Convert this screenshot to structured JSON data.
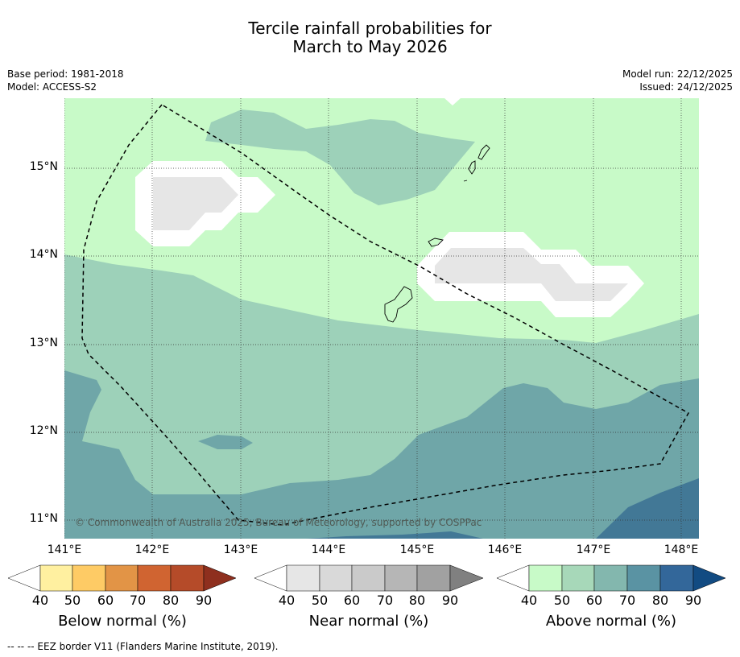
{
  "title": {
    "line1": "Tercile rainfall probabilities for",
    "line2": "March to May 2026"
  },
  "meta": {
    "base_period": "Base period: 1981-2018",
    "model": "Model: ACCESS-S2",
    "model_run": "Model run: 22/12/2025",
    "issued": "Issued: 24/12/2025"
  },
  "map": {
    "lat_labels": [
      "15°N",
      "14°N",
      "13°N",
      "12°N",
      "11°N"
    ],
    "lon_labels": [
      "141°E",
      "142°E",
      "143°E",
      "144°E",
      "145°E",
      "146°E",
      "147°E",
      "148°E"
    ],
    "copyright": "© Commonwealth of Australia 2025, Bureau of Meteorology, supported by COSPPac",
    "colors": {
      "above_40_50": "#c8fac8",
      "above_50_60": "#9dd1b9",
      "above_60_70": "#6fa6a8",
      "above_70_80": "#427896",
      "near_40_50": "#e6e6e6"
    }
  },
  "colorbars": {
    "ticks": [
      "40",
      "50",
      "60",
      "70",
      "80",
      "90"
    ],
    "below": {
      "label": "Below normal (%)",
      "colors": [
        "#fff0a0",
        "#fecb65",
        "#e29446",
        "#d06431",
        "#b54b29",
        "#8e2f1e"
      ]
    },
    "near": {
      "label": "Near normal (%)",
      "colors": [
        "#e6e6e6",
        "#d9d9d9",
        "#cacaca",
        "#b6b6b6",
        "#a1a1a1",
        "#808080"
      ]
    },
    "above": {
      "label": "Above normal (%)",
      "colors": [
        "#c8fac8",
        "#a7d8b9",
        "#83b7ae",
        "#5a93a3",
        "#33679a",
        "#124b82"
      ]
    }
  },
  "footer": "--  --  -- EEZ border V11 (Flanders Marine Institute, 2019)."
}
